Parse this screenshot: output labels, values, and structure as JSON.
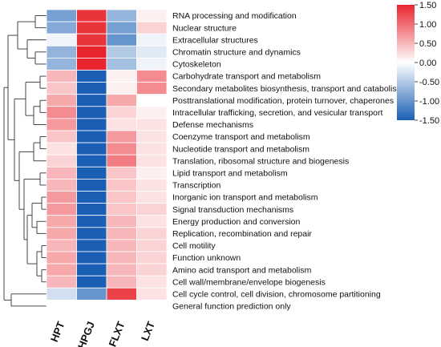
{
  "chart_data": {
    "type": "heatmap",
    "columns": [
      "HPT",
      "HPGJ",
      "FLXT",
      "LXT"
    ],
    "rows": [
      "RNA processing and modification",
      "Nuclear structure",
      "Extracellular structures",
      "Chromatin structure and dynamics",
      "Cytoskeleton",
      "Carbohydrate transport and metabolism",
      "Secondary metabolites biosynthesis, transport and catabolism",
      "Posttranslational modification, protein turnover, chaperones",
      "Intracellular trafficking, secretion, and vesicular transport",
      "Defense mechanisms",
      "Coenzyme transport and metabolism",
      "Nucleotide transport and metabolism",
      "Translation, ribosomal structure and biogenesis",
      "Lipid transport and metabolism",
      "Transcription",
      "Inorganic ion transport and metabolism",
      "Signal transduction mechanisms",
      "Energy production and conversion",
      "Replication, recombination and repair",
      "Cell motility",
      "Function unknown",
      "Amino acid transport and metabolism",
      "Cell wall/membrane/envelope biogenesis",
      "Cell cycle control, cell division, chromosome partitioning",
      "General function prediction only"
    ],
    "values": [
      [
        -0.9,
        1.4,
        -0.7,
        0.1
      ],
      [
        -0.8,
        1.4,
        -0.9,
        0.3
      ],
      [
        -0.1,
        1.4,
        -1.0,
        -0.1
      ],
      [
        -0.7,
        1.5,
        -0.5,
        -0.2
      ],
      [
        -0.7,
        1.5,
        -0.6,
        -0.1
      ],
      [
        0.5,
        -1.5,
        0.1,
        0.8
      ],
      [
        0.4,
        -1.5,
        0.1,
        0.8
      ],
      [
        0.6,
        -1.5,
        0.6,
        0.0
      ],
      [
        0.8,
        -1.5,
        0.3,
        0.1
      ],
      [
        0.7,
        -1.5,
        0.2,
        0.2
      ],
      [
        0.4,
        -1.5,
        0.7,
        0.2
      ],
      [
        0.2,
        -1.5,
        0.8,
        0.2
      ],
      [
        0.3,
        -1.5,
        0.9,
        0.2
      ],
      [
        0.5,
        -1.5,
        0.4,
        0.1
      ],
      [
        0.5,
        -1.5,
        0.4,
        0.2
      ],
      [
        0.7,
        -1.5,
        0.4,
        0.2
      ],
      [
        0.7,
        -1.5,
        0.4,
        0.3
      ],
      [
        0.6,
        -1.5,
        0.5,
        0.2
      ],
      [
        0.6,
        -1.5,
        0.5,
        0.3
      ],
      [
        0.5,
        -1.5,
        0.5,
        0.3
      ],
      [
        0.6,
        -1.5,
        0.5,
        0.3
      ],
      [
        0.6,
        -1.5,
        0.5,
        0.3
      ],
      [
        0.5,
        -1.5,
        0.5,
        0.2
      ],
      [
        -0.3,
        -1.0,
        1.3,
        0.2
      ],
      [
        0.0,
        0.0,
        0.0,
        0.0
      ]
    ],
    "colorscale": {
      "min": -1.5,
      "max": 1.5,
      "low": "#1a5fb4",
      "mid": "#ffffff",
      "high": "#e8252e",
      "ticks": [
        "1.50",
        "1.00",
        "0.50",
        "0.00",
        "-0.50",
        "-1.00",
        "-1.50"
      ]
    },
    "row_dendrogram": true,
    "legend": "top-right"
  }
}
